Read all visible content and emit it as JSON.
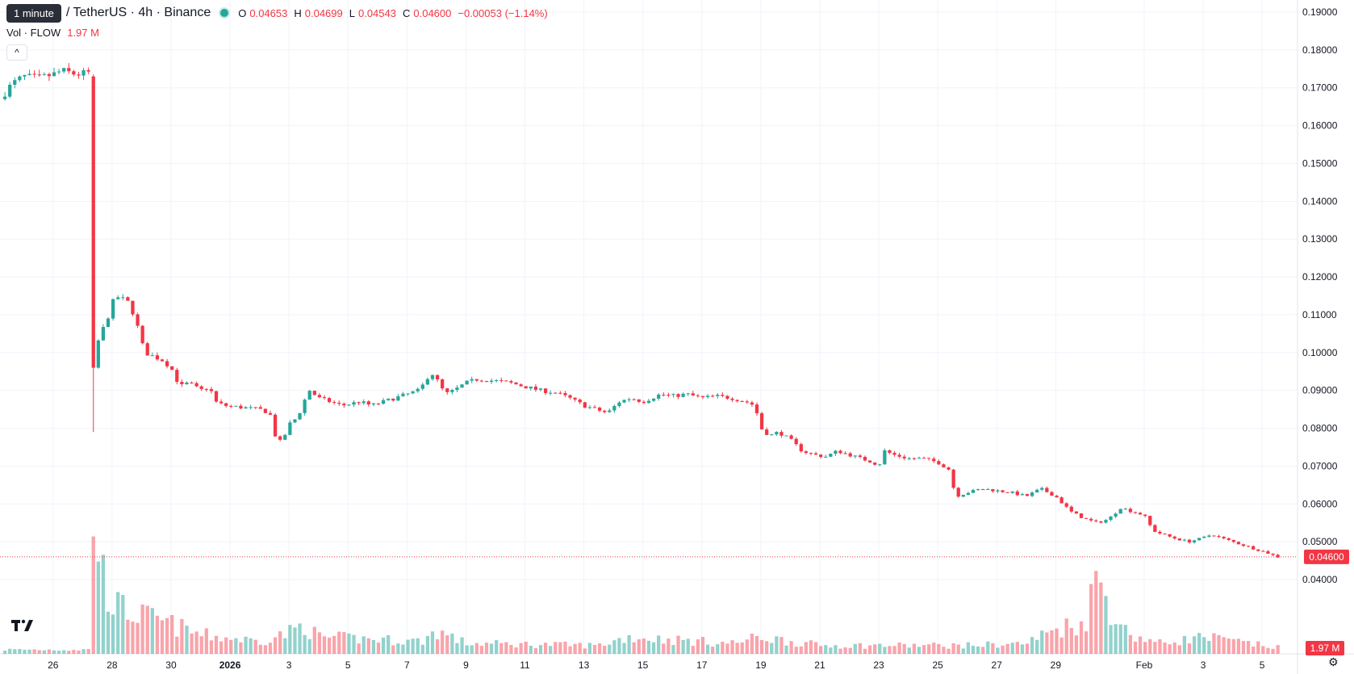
{
  "tooltip": "1 minute",
  "symbol": "/ TetherUS · 4h · Binance",
  "ohlc": {
    "o_label": "O",
    "o": "0.04653",
    "h_label": "H",
    "h": "0.04699",
    "l_label": "L",
    "l": "0.04543",
    "c_label": "C",
    "c": "0.04600",
    "change": "−0.00053 (−1.14%)"
  },
  "volume": {
    "label": "Vol · FLOW",
    "value": "1.97 M"
  },
  "price_badge": "0.04600",
  "volume_badge": "1.97 M",
  "colors": {
    "up": "#26a69a",
    "down": "#f23645",
    "grid": "#f0f3fa"
  },
  "icons": {
    "collapse": "chevron-up-icon",
    "logo": "tradingview-logo-icon",
    "settings": "settings-icon"
  },
  "chart_data": {
    "type": "candlestick",
    "interval": "4h",
    "y_ticks": [
      "0.04000",
      "0.05000",
      "0.06000",
      "0.07000",
      "0.08000",
      "0.09000",
      "0.10000",
      "0.11000",
      "0.12000",
      "0.13000",
      "0.14000",
      "0.15000",
      "0.16000",
      "0.17000",
      "0.18000",
      "0.19000"
    ],
    "ylim": [
      0.0345,
      0.1915
    ],
    "last_price": 0.046,
    "x_ticks": [
      {
        "label": "26",
        "day": 0
      },
      {
        "label": "28",
        "day": 2
      },
      {
        "label": "30",
        "day": 4
      },
      {
        "label": "2026",
        "day": 6,
        "bold": true
      },
      {
        "label": "3",
        "day": 8
      },
      {
        "label": "5",
        "day": 10
      },
      {
        "label": "7",
        "day": 12
      },
      {
        "label": "9",
        "day": 14
      },
      {
        "label": "11",
        "day": 16
      },
      {
        "label": "13",
        "day": 18
      },
      {
        "label": "15",
        "day": 20
      },
      {
        "label": "17",
        "day": 22
      },
      {
        "label": "19",
        "day": 24
      },
      {
        "label": "21",
        "day": 26
      },
      {
        "label": "23",
        "day": 28
      },
      {
        "label": "25",
        "day": 30
      },
      {
        "label": "27",
        "day": 32
      },
      {
        "label": "29",
        "day": 34
      },
      {
        "label": "Feb",
        "day": 37
      },
      {
        "label": "3",
        "day": 39
      },
      {
        "label": "5",
        "day": 41
      }
    ],
    "xlim_days": [
      -1.8,
      42.2
    ],
    "close_keypoints": [
      [
        -1.8,
        0.167
      ],
      [
        -1.4,
        0.171
      ],
      [
        -1.0,
        0.173
      ],
      [
        -0.5,
        0.1725
      ],
      [
        0.0,
        0.1735
      ],
      [
        0.3,
        0.1745
      ],
      [
        0.8,
        0.1735
      ],
      [
        1.2,
        0.174
      ],
      [
        1.33,
        0.173
      ],
      [
        1.4,
        0.096
      ],
      [
        1.55,
        0.104
      ],
      [
        1.8,
        0.108
      ],
      [
        2.1,
        0.115
      ],
      [
        2.4,
        0.114
      ],
      [
        2.6,
        0.113
      ],
      [
        2.9,
        0.106
      ],
      [
        3.1,
        0.1
      ],
      [
        3.4,
        0.099
      ],
      [
        3.7,
        0.098
      ],
      [
        4.0,
        0.096
      ],
      [
        4.3,
        0.091
      ],
      [
        4.6,
        0.092
      ],
      [
        5.0,
        0.09
      ],
      [
        5.3,
        0.091
      ],
      [
        5.5,
        0.087
      ],
      [
        5.8,
        0.086
      ],
      [
        6.4,
        0.0855
      ],
      [
        7.0,
        0.085
      ],
      [
        7.35,
        0.084
      ],
      [
        7.6,
        0.076
      ],
      [
        7.8,
        0.077
      ],
      [
        8.0,
        0.081
      ],
      [
        8.3,
        0.083
      ],
      [
        8.5,
        0.087
      ],
      [
        8.7,
        0.09
      ],
      [
        9.0,
        0.088
      ],
      [
        9.4,
        0.087
      ],
      [
        9.8,
        0.086
      ],
      [
        10.4,
        0.087
      ],
      [
        10.8,
        0.086
      ],
      [
        11.2,
        0.087
      ],
      [
        11.6,
        0.088
      ],
      [
        12.0,
        0.089
      ],
      [
        12.4,
        0.09
      ],
      [
        12.6,
        0.092
      ],
      [
        12.8,
        0.095
      ],
      [
        13.0,
        0.093
      ],
      [
        13.3,
        0.089
      ],
      [
        13.6,
        0.09
      ],
      [
        14.0,
        0.092
      ],
      [
        14.4,
        0.093
      ],
      [
        15.0,
        0.0925
      ],
      [
        15.5,
        0.092
      ],
      [
        16.0,
        0.091
      ],
      [
        16.5,
        0.09
      ],
      [
        17.0,
        0.0895
      ],
      [
        17.5,
        0.088
      ],
      [
        18.0,
        0.086
      ],
      [
        18.4,
        0.085
      ],
      [
        18.8,
        0.084
      ],
      [
        19.2,
        0.087
      ],
      [
        19.6,
        0.088
      ],
      [
        20.0,
        0.087
      ],
      [
        20.6,
        0.089
      ],
      [
        21.0,
        0.0885
      ],
      [
        21.5,
        0.089
      ],
      [
        22.0,
        0.088
      ],
      [
        22.5,
        0.0885
      ],
      [
        23.0,
        0.088
      ],
      [
        23.5,
        0.087
      ],
      [
        23.8,
        0.086
      ],
      [
        24.0,
        0.08
      ],
      [
        24.3,
        0.078
      ],
      [
        24.6,
        0.079
      ],
      [
        25.0,
        0.077
      ],
      [
        25.4,
        0.074
      ],
      [
        25.8,
        0.073
      ],
      [
        26.2,
        0.0725
      ],
      [
        26.6,
        0.074
      ],
      [
        27.0,
        0.073
      ],
      [
        27.4,
        0.072
      ],
      [
        27.8,
        0.071
      ],
      [
        28.0,
        0.07
      ],
      [
        28.2,
        0.074
      ],
      [
        28.5,
        0.073
      ],
      [
        29.0,
        0.072
      ],
      [
        29.5,
        0.072
      ],
      [
        30.0,
        0.071
      ],
      [
        30.4,
        0.069
      ],
      [
        30.6,
        0.062
      ],
      [
        31.0,
        0.063
      ],
      [
        31.5,
        0.064
      ],
      [
        32.0,
        0.0635
      ],
      [
        32.5,
        0.063
      ],
      [
        33.0,
        0.062
      ],
      [
        33.5,
        0.064
      ],
      [
        34.0,
        0.062
      ],
      [
        34.5,
        0.058
      ],
      [
        35.0,
        0.056
      ],
      [
        35.4,
        0.055
      ],
      [
        35.8,
        0.056
      ],
      [
        36.2,
        0.059
      ],
      [
        36.6,
        0.058
      ],
      [
        37.0,
        0.057
      ],
      [
        37.3,
        0.053
      ],
      [
        37.6,
        0.052
      ],
      [
        38.0,
        0.051
      ],
      [
        38.5,
        0.05
      ],
      [
        39.0,
        0.051
      ],
      [
        39.3,
        0.052
      ],
      [
        39.6,
        0.051
      ],
      [
        40.0,
        0.05
      ],
      [
        40.4,
        0.049
      ],
      [
        40.8,
        0.048
      ],
      [
        41.2,
        0.047
      ],
      [
        41.5,
        0.046
      ]
    ],
    "volume_keypoints": [
      [
        -1.8,
        0.2
      ],
      [
        1.2,
        0.2
      ],
      [
        1.35,
        7.2
      ],
      [
        1.55,
        4.6
      ],
      [
        1.8,
        3.2
      ],
      [
        2.2,
        2.2
      ],
      [
        3.0,
        1.8
      ],
      [
        4.0,
        1.4
      ],
      [
        5.0,
        0.9
      ],
      [
        7.0,
        0.6
      ],
      [
        8.0,
        1.0
      ],
      [
        8.5,
        1.4
      ],
      [
        9.0,
        0.8
      ],
      [
        12.5,
        0.6
      ],
      [
        13.0,
        1.1
      ],
      [
        14.0,
        0.5
      ],
      [
        18.5,
        0.4
      ],
      [
        19.5,
        0.8
      ],
      [
        23.0,
        0.5
      ],
      [
        24.0,
        0.8
      ],
      [
        26.0,
        0.4
      ],
      [
        31.0,
        0.4
      ],
      [
        33.0,
        0.5
      ],
      [
        34.0,
        1.2
      ],
      [
        35.0,
        1.5
      ],
      [
        35.4,
        3.8
      ],
      [
        35.8,
        2.4
      ],
      [
        36.4,
        1.0
      ],
      [
        37.5,
        0.5
      ],
      [
        39.0,
        0.8
      ],
      [
        41.5,
        0.3
      ]
    ]
  }
}
